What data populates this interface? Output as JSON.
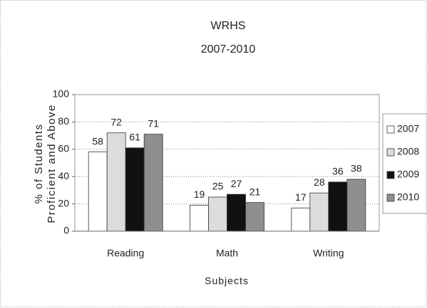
{
  "chart_data": {
    "type": "bar",
    "title": "WRHS",
    "subtitle": "2007-2010",
    "ylabel": [
      "% of Students",
      "Proficient and Above"
    ],
    "xlabel": "Subjects",
    "categories": [
      "Reading",
      "Math",
      "Writing"
    ],
    "series": [
      {
        "name": "2007",
        "color": "#ffffff",
        "values": [
          58,
          19,
          17
        ]
      },
      {
        "name": "2008",
        "color": "#dcdcdc",
        "values": [
          72,
          25,
          28
        ]
      },
      {
        "name": "2009",
        "color": "#111111",
        "values": [
          61,
          27,
          36
        ]
      },
      {
        "name": "2010",
        "color": "#8f8f8f",
        "values": [
          71,
          21,
          38
        ]
      }
    ],
    "ylim": [
      0,
      100
    ],
    "yticks": [
      0,
      20,
      40,
      60,
      80,
      100
    ],
    "grid": true,
    "legend": "right"
  }
}
